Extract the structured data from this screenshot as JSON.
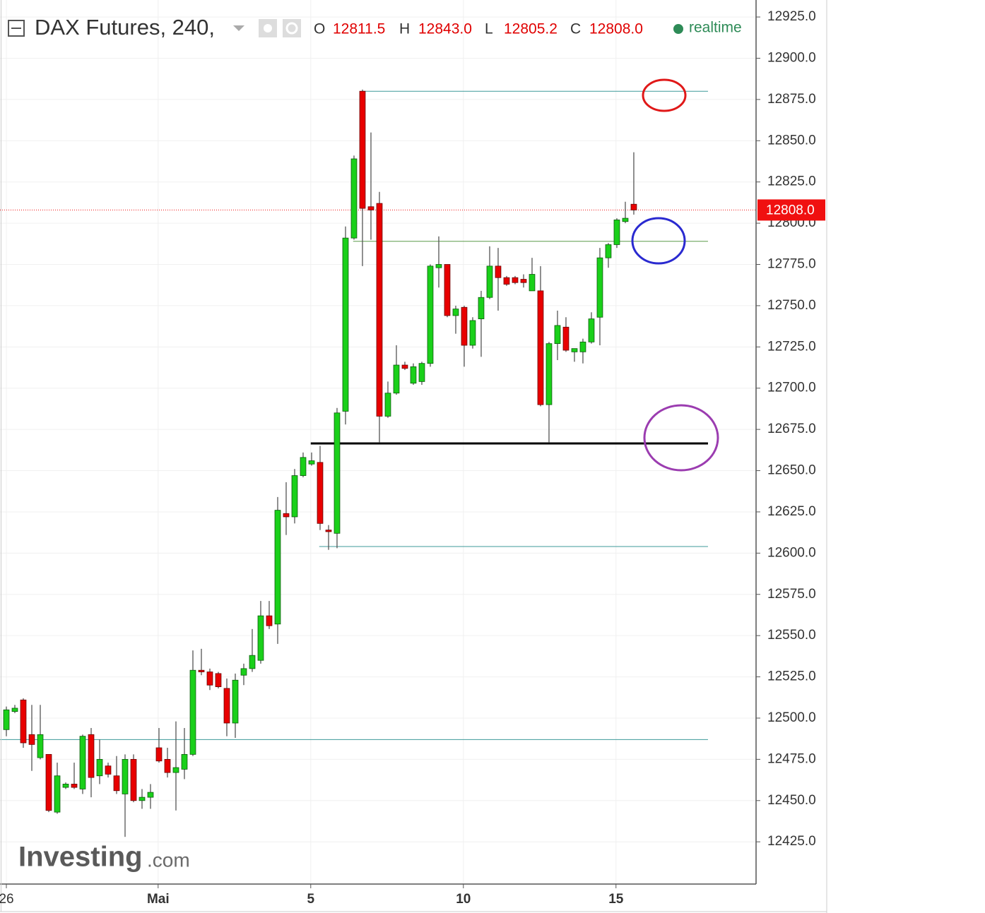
{
  "header": {
    "symbol": "DAX Futures, 240,",
    "ohlc": [
      {
        "label": "O",
        "value": "12811.5"
      },
      {
        "label": "H",
        "value": "12843.0"
      },
      {
        "label": "L",
        "value": "12805.2"
      },
      {
        "label": "C",
        "value": "12808.0"
      }
    ],
    "status": "realtime"
  },
  "logo": {
    "brand": "Investing",
    "suffix": ".com"
  },
  "chart_data": {
    "type": "candlestick",
    "categories": [
      null,
      null,
      null,
      null,
      null,
      null,
      null,
      null,
      null,
      null,
      null,
      null,
      null,
      null,
      null,
      null,
      null,
      null,
      null,
      null,
      null,
      null,
      null,
      null,
      null,
      null,
      null,
      null,
      null,
      null,
      null,
      null,
      null,
      null,
      null,
      null,
      null,
      null,
      null,
      null,
      null,
      null,
      null,
      null,
      null,
      null,
      null,
      null,
      null,
      null,
      null,
      null,
      null,
      null,
      null,
      null,
      null,
      null,
      null,
      null,
      null,
      null,
      null,
      null,
      null,
      null,
      null,
      null,
      null,
      null,
      null,
      null,
      null,
      null,
      null
    ],
    "open": [
      12493,
      12504,
      12511,
      12490,
      12476,
      12478,
      12443,
      12458,
      12460,
      12457,
      12490,
      12465,
      12471,
      12465,
      12454,
      12475,
      12450,
      12452,
      12482,
      12475,
      12467,
      12469,
      12478,
      12529,
      12528,
      12527,
      12518,
      12497,
      12526,
      12530,
      12535,
      12562,
      12557,
      12624,
      12622,
      12647,
      12654,
      12655,
      12614,
      12612,
      12686,
      12791,
      12880,
      12810,
      12812,
      12683,
      12697,
      12714,
      12703,
      12704,
      12715,
      12773,
      12775,
      12744,
      12749,
      12726,
      12742,
      12755,
      12774,
      12767,
      12767,
      12766,
      12759,
      12759,
      12690,
      12727,
      12737,
      12722,
      12722,
      12728,
      12743,
      12779,
      12787,
      12801,
      12811.5
    ],
    "high": [
      12507,
      12508,
      12512,
      12508,
      12508,
      12478,
      12473,
      12461,
      12473,
      12490,
      12494,
      12487,
      12473,
      12477,
      12478,
      12478,
      12457,
      12460,
      12494,
      12482,
      12498,
      12494,
      12541,
      12542,
      12530,
      12528,
      12524,
      12527,
      12533,
      12554,
      12571,
      12571,
      12634,
      12643,
      12651,
      12661,
      12661,
      12665,
      12617,
      12688,
      12798,
      12841,
      12881,
      12855,
      12819,
      12704,
      12726,
      12716,
      12715,
      12716,
      12775,
      12792,
      12775,
      12750,
      12750,
      12743,
      12759,
      12786,
      12785,
      12768,
      12768,
      12769,
      12779,
      12774,
      12728,
      12747,
      12743,
      12724,
      12730,
      12746,
      12785,
      12788,
      12803,
      12813,
      12843
    ],
    "low": [
      12489,
      12503,
      12482,
      12468,
      12475,
      12443,
      12442,
      12457,
      12457,
      12454,
      12452,
      12460,
      12464,
      12454,
      12428,
      12449,
      12445,
      12445,
      12473,
      12464,
      12444,
      12463,
      12477,
      12526,
      12517,
      12518,
      12489,
      12488,
      12520,
      12528,
      12533,
      12554,
      12545,
      12611,
      12618,
      12646,
      12653,
      12614,
      12602,
      12603,
      12678,
      12790,
      12774,
      12790,
      12667,
      12682,
      12696,
      12711,
      12702,
      12702,
      12713,
      12761,
      12743,
      12733,
      12713,
      12724,
      12719,
      12754,
      12747,
      12762,
      12763,
      12761,
      12759,
      12689,
      12667,
      12717,
      12722,
      12716,
      12715,
      12727,
      12726,
      12773,
      12785,
      12800,
      12805.2
    ],
    "close": [
      12505,
      12506,
      12485,
      12484,
      12490,
      12444,
      12465,
      12460,
      12458,
      12489,
      12464,
      12475,
      12466,
      12456,
      12475,
      12450,
      12452,
      12455,
      12474,
      12467,
      12470,
      12478,
      12529,
      12528,
      12520,
      12519,
      12497,
      12523,
      12530,
      12538,
      12562,
      12556,
      12626,
      12622,
      12647,
      12658,
      12656,
      12618,
      12613,
      12685,
      12791,
      12839,
      12809,
      12808,
      12683,
      12697,
      12714,
      12712,
      12713,
      12715,
      12774,
      12775,
      12744,
      12748,
      12726,
      12741,
      12755,
      12774,
      12767,
      12763,
      12764,
      12764,
      12769,
      12690,
      12727,
      12738,
      12723,
      12724,
      12728,
      12742,
      12779,
      12787,
      12802,
      12803,
      12808
    ],
    "up_color": "#1ad01a",
    "down_color": "#e80000",
    "xlim": [
      -0.75,
      88.42
    ],
    "xticks": [
      {
        "value": 0,
        "label": "26"
      },
      {
        "value": 17.9,
        "label": "Mai"
      },
      {
        "value": 35.9,
        "label": "5"
      },
      {
        "value": 53.9,
        "label": "10"
      },
      {
        "value": 71.9,
        "label": "15"
      }
    ],
    "ylim": [
      12399.4,
      12935.3
    ],
    "yticks": [
      {
        "value": 12425,
        "label": "12425.0"
      },
      {
        "value": 12450,
        "label": "12450.0"
      },
      {
        "value": 12475,
        "label": "12475.0"
      },
      {
        "value": 12500,
        "label": "12500.0"
      },
      {
        "value": 12525,
        "label": "12525.0"
      },
      {
        "value": 12550,
        "label": "12550.0"
      },
      {
        "value": 12575,
        "label": "12575.0"
      },
      {
        "value": 12600,
        "label": "12600.0"
      },
      {
        "value": 12625,
        "label": "12625.0"
      },
      {
        "value": 12650,
        "label": "12650.0"
      },
      {
        "value": 12675,
        "label": "12675.0"
      },
      {
        "value": 12700,
        "label": "12700.0"
      },
      {
        "value": 12725,
        "label": "12725.0"
      },
      {
        "value": 12750,
        "label": "12750.0"
      },
      {
        "value": 12775,
        "label": "12775.0"
      },
      {
        "value": 12800,
        "label": "12800.0"
      },
      {
        "value": 12825,
        "label": "12825.0"
      },
      {
        "value": 12850,
        "label": "12850.0"
      },
      {
        "value": 12875,
        "label": "12875.0"
      },
      {
        "value": 12900,
        "label": "12900.0"
      },
      {
        "value": 12925,
        "label": "12925.0"
      }
    ],
    "grid": true,
    "lines": [
      {
        "value": 12880,
        "color": "#3d9a9a",
        "width": 1,
        "from": 42,
        "to": 82.75
      },
      {
        "value": 12789,
        "color": "#5c9a4a",
        "width": 1,
        "from": 40.9,
        "to": 82.75
      },
      {
        "value": 12666.5,
        "color": "#000000",
        "width": 3,
        "from": 35.9,
        "to": 82.75
      },
      {
        "value": 12604,
        "color": "#3d9a9a",
        "width": 1,
        "from": 36.9,
        "to": 82.75
      },
      {
        "value": 12487,
        "color": "#3d9a9a",
        "width": 1,
        "from": -0.75,
        "to": 82.75
      }
    ],
    "last_price": {
      "value": 12808,
      "label": "12808.0",
      "color": "#f01010"
    }
  }
}
